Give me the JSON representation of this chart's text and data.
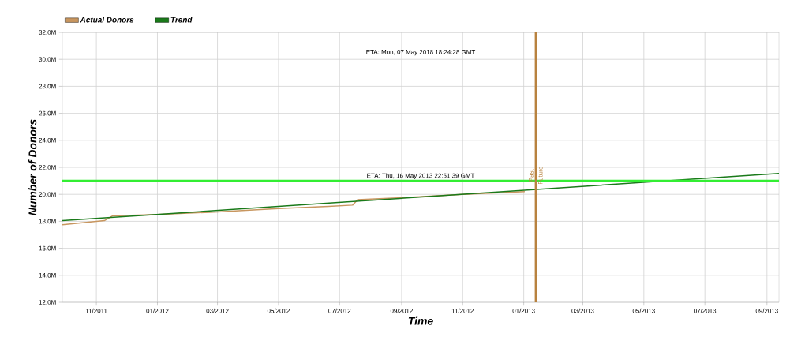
{
  "chart_data": {
    "type": "line",
    "xlabel": "Time",
    "ylabel": "Number of Donors",
    "x": [
      "2011-09-28",
      "2011-11-09",
      "2011-11-17",
      "2012-01-01",
      "2012-03-01",
      "2012-05-01",
      "2012-06-20",
      "2012-07-14",
      "2012-07-19",
      "2012-09-01",
      "2012-11-01",
      "2013-01-02"
    ],
    "series": [
      {
        "name": "Actual Donors",
        "color": "#c8965f",
        "values": [
          17.75,
          18.05,
          18.4,
          18.5,
          18.7,
          18.95,
          19.1,
          19.2,
          19.6,
          19.75,
          20.0,
          20.2
        ]
      },
      {
        "name": "Trend",
        "color": "#1a7a1a",
        "x": [
          "2011-09-28",
          "2013-09-13"
        ],
        "values": [
          18.05,
          21.55
        ]
      }
    ],
    "xlim": [
      "2011-09-28",
      "2013-09-13"
    ],
    "xticks": [
      {
        "value": "2011-11-01",
        "label": "11/2011"
      },
      {
        "value": "2012-01-01",
        "label": "01/2012"
      },
      {
        "value": "2012-03-01",
        "label": "03/2012"
      },
      {
        "value": "2012-05-01",
        "label": "05/2012"
      },
      {
        "value": "2012-07-01",
        "label": "07/2012"
      },
      {
        "value": "2012-09-01",
        "label": "09/2012"
      },
      {
        "value": "2012-11-01",
        "label": "11/2012"
      },
      {
        "value": "2013-01-01",
        "label": "01/2013"
      },
      {
        "value": "2013-03-01",
        "label": "03/2013"
      },
      {
        "value": "2013-05-01",
        "label": "05/2013"
      },
      {
        "value": "2013-07-01",
        "label": "07/2013"
      },
      {
        "value": "2013-09-01",
        "label": "09/2013"
      }
    ],
    "ylim": [
      12,
      32
    ],
    "yticks": [
      {
        "value": 12,
        "label": "12.0M"
      },
      {
        "value": 14,
        "label": "14.0M"
      },
      {
        "value": 16,
        "label": "16.0M"
      },
      {
        "value": 18,
        "label": "18.0M"
      },
      {
        "value": 20,
        "label": "20.0M"
      },
      {
        "value": 22,
        "label": "22.0M"
      },
      {
        "value": 24,
        "label": "24.0M"
      },
      {
        "value": 26,
        "label": "26.0M"
      },
      {
        "value": 28,
        "label": "28.0M"
      },
      {
        "value": 30,
        "label": "30.0M"
      },
      {
        "value": 32,
        "label": "32.0M"
      }
    ],
    "ref_lines": [
      {
        "axis": "y",
        "value": 21.0,
        "color": "#33ee33"
      },
      {
        "axis": "x",
        "value": "2013-01-13",
        "label": "Past",
        "color": "#b8823f"
      }
    ],
    "annotations": [
      "ETA: Mon, 07 May 2018 18:24:28 GMT",
      {
        "text": "Future",
        "x": "2013-01-13",
        "y": 21.4
      },
      {
        "text": "ETA: Thu, 16 May 2013 22:51:39 GMT",
        "y": 21.0
      }
    ],
    "grid": true,
    "legend": "top left"
  }
}
